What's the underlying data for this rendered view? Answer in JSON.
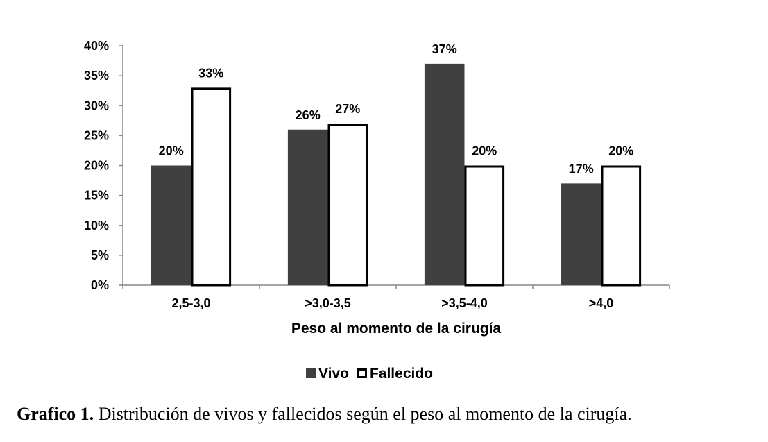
{
  "chart_data": {
    "type": "bar",
    "categories": [
      "2,5-3,0",
      ">3,0-3,5",
      ">3,5-4,0",
      ">4,0"
    ],
    "series": [
      {
        "name": "Vivo",
        "values": [
          20,
          26,
          37,
          17
        ],
        "labels": [
          "20%",
          "26%",
          "37%",
          "17%"
        ],
        "color": "#404040"
      },
      {
        "name": "Fallecido",
        "values": [
          33,
          27,
          20,
          20
        ],
        "labels": [
          "33%",
          "27%",
          "20%",
          "20%"
        ],
        "color": "#ffffff"
      }
    ],
    "ylim": [
      0,
      40
    ],
    "yticks": [
      "0%",
      "5%",
      "10%",
      "15%",
      "20%",
      "25%",
      "30%",
      "35%",
      "40%"
    ],
    "xlabel": "Peso al momento de la cirugía",
    "ylabel": "",
    "grid": false,
    "legend_position": "bottom"
  },
  "caption": {
    "label": "Grafico 1.",
    "text": " Distribución de vivos y fallecidos según el peso al momento de la cirugía."
  }
}
